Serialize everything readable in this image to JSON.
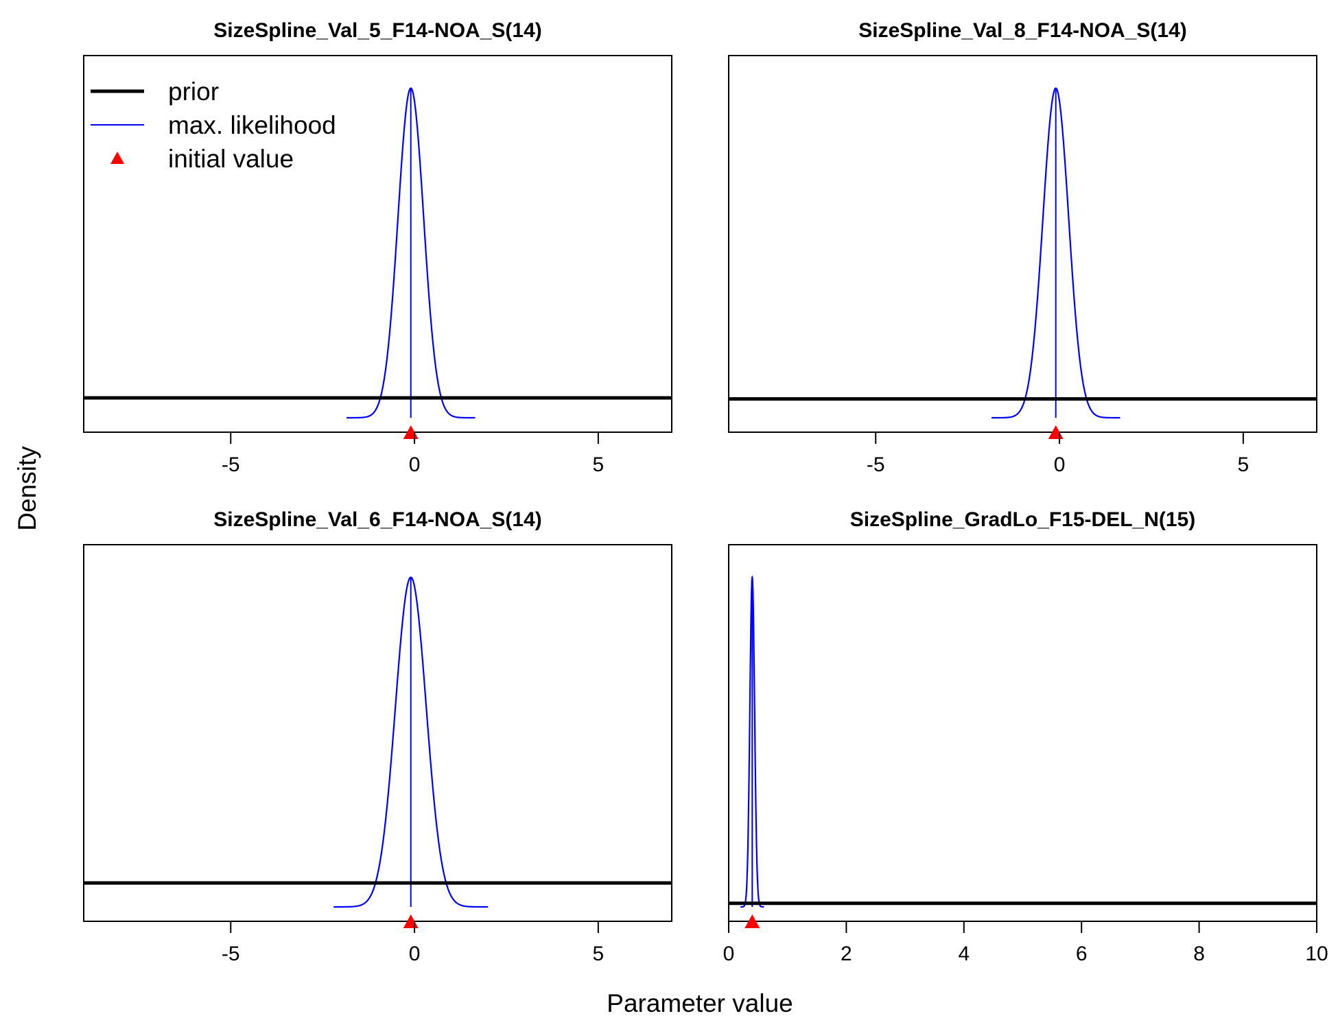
{
  "figure": {
    "xlabel": "Parameter value",
    "ylabel": "Density"
  },
  "legend": {
    "items": [
      {
        "label": "prior",
        "kind": "line",
        "color": "#000000"
      },
      {
        "label": "max. likelihood",
        "kind": "line",
        "color": "#0000ff"
      },
      {
        "label": "initial value",
        "kind": "triangle",
        "color": "#ff0000"
      }
    ]
  },
  "colors": {
    "prior": "#000000",
    "likelihood": "#0000ff",
    "initial": "#ff0000"
  },
  "chart_data": [
    {
      "type": "line",
      "title": "SizeSpline_Val_5_F14-NOA_S(14)",
      "xlim": [
        -9,
        7
      ],
      "xticks": [
        -5,
        0,
        5
      ],
      "tick_labels": [
        "-5",
        "0",
        "5"
      ],
      "likelihood": {
        "mean": -0.1,
        "sd": 0.35,
        "peak_fraction": 0.91
      },
      "prior_fraction": 0.055,
      "initial_value": -0.1
    },
    {
      "type": "line",
      "title": "SizeSpline_Val_8_F14-NOA_S(14)",
      "xlim": [
        -9,
        7
      ],
      "xticks": [
        -5,
        0,
        5
      ],
      "tick_labels": [
        "-5",
        "0",
        "5"
      ],
      "likelihood": {
        "mean": -0.1,
        "sd": 0.35,
        "peak_fraction": 0.91
      },
      "prior_fraction": 0.052,
      "initial_value": -0.1
    },
    {
      "type": "line",
      "title": "SizeSpline_Val_6_F14-NOA_S(14)",
      "xlim": [
        -9,
        7
      ],
      "xticks": [
        -5,
        0,
        5
      ],
      "tick_labels": [
        "-5",
        "0",
        "5"
      ],
      "likelihood": {
        "mean": -0.1,
        "sd": 0.42,
        "peak_fraction": 0.91
      },
      "prior_fraction": 0.066,
      "initial_value": -0.1
    },
    {
      "type": "line",
      "title": "SizeSpline_GradLo_F15-DEL_N(15)",
      "xlim": [
        0,
        10
      ],
      "xticks": [
        0,
        2,
        4,
        6,
        8,
        10
      ],
      "tick_labels": [
        "0",
        "2",
        "4",
        "6",
        "8",
        "10"
      ],
      "likelihood": {
        "mean": 0.4,
        "sd": 0.04,
        "peak_fraction": 0.91
      },
      "prior_fraction": 0.01,
      "initial_value": 0.4
    }
  ]
}
